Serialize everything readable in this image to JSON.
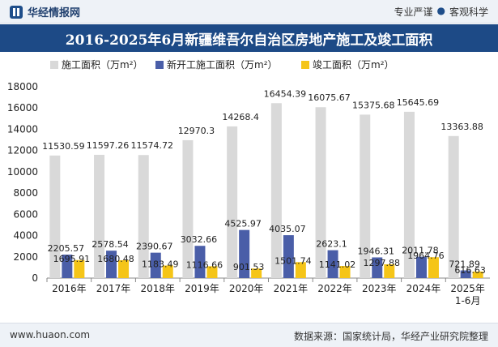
{
  "header": {
    "brand": "华经情报网",
    "slogan_left": "专业严谨",
    "slogan_dot": "●",
    "slogan_right": "客观科学"
  },
  "footer": {
    "website": "www.huaon.com",
    "source": "数据来源：国家统计局，华经产业研究院整理"
  },
  "colors": {
    "title_bg": "#1d4a86",
    "series": [
      "#d9d9d9",
      "#4a5ea8",
      "#f5c518"
    ]
  },
  "chart_data": {
    "type": "bar",
    "title": "2016-2025年6月新疆维吾尔自治区房地产施工及竣工面积",
    "categories": [
      "2016年",
      "2017年",
      "2018年",
      "2019年",
      "2020年",
      "2021年",
      "2022年",
      "2023年",
      "2024年",
      "2025年\n1-6月"
    ],
    "series": [
      {
        "name": "施工面积（万m²）",
        "values": [
          11530.59,
          11597.26,
          11574.72,
          12970.3,
          14268.4,
          16454.39,
          16075.67,
          15375.68,
          15645.69,
          13363.88
        ],
        "labels": [
          "11530.59",
          "11597.26",
          "11574.72",
          "12970.3",
          "14268.4",
          "16454.39",
          "16075.67",
          "15375.68",
          "15645.69",
          "13363.88"
        ]
      },
      {
        "name": "新开工施工面积（万m²）",
        "values": [
          2205.57,
          2578.54,
          2390.67,
          3032.66,
          4525.97,
          4035.07,
          2623.1,
          1946.31,
          2011.78,
          721.89
        ],
        "labels": [
          "2205.57",
          "2578.54",
          "2390.67",
          "3032.66",
          "4525.97",
          "4035.07",
          "2623.1",
          "1946.31",
          "2011.78",
          "721.89"
        ]
      },
      {
        "name": "竣工面积（万m²）",
        "values": [
          1695.91,
          1680.48,
          1183.49,
          1116.66,
          901.53,
          1501.74,
          1141.02,
          1297.88,
          1964.76,
          616.63
        ],
        "labels": [
          "1695.91",
          "1680.48",
          "1183.49",
          "1116.66",
          "901.53",
          "1501.74",
          "1141.02",
          "1297.88",
          "1964.76",
          "616.63"
        ]
      }
    ],
    "ylim": [
      0,
      18000
    ],
    "yticks": [
      0,
      2000,
      4000,
      6000,
      8000,
      10000,
      12000,
      14000,
      16000,
      18000
    ],
    "xlabel": "",
    "ylabel": "",
    "grid": false,
    "legend": "top-left"
  }
}
